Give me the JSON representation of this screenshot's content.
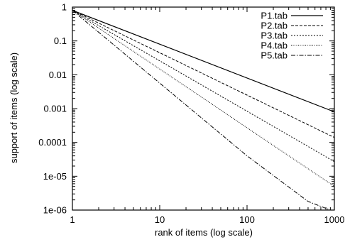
{
  "chart_data": {
    "type": "line",
    "xlabel": "rank of items (log scale)",
    "ylabel": "support of items (log scale)",
    "xscale": "log",
    "yscale": "log",
    "xlim": [
      1,
      1000
    ],
    "ylim": [
      1e-06,
      1
    ],
    "x_ticks": [
      {
        "value": 1,
        "label": "1"
      },
      {
        "value": 10,
        "label": "10"
      },
      {
        "value": 100,
        "label": "100"
      },
      {
        "value": 1000,
        "label": "1000"
      }
    ],
    "y_ticks": [
      {
        "value": 1,
        "label": "1"
      },
      {
        "value": 0.1,
        "label": "0.1"
      },
      {
        "value": 0.01,
        "label": "0.01"
      },
      {
        "value": 0.001,
        "label": "0.001"
      },
      {
        "value": 0.0001,
        "label": "0.0001"
      },
      {
        "value": 1e-05,
        "label": "1e-05"
      },
      {
        "value": 1e-06,
        "label": "1e-06"
      }
    ],
    "grid": false,
    "legend_position": "top-right",
    "series": [
      {
        "name": "P1.tab",
        "dash": "solid",
        "x": [
          1,
          1000
        ],
        "y": [
          0.8,
          0.0008
        ]
      },
      {
        "name": "P2.tab",
        "dash": "dashed",
        "x": [
          1,
          1000
        ],
        "y": [
          0.8,
          0.00014
        ]
      },
      {
        "name": "P3.tab",
        "dash": "dotted",
        "x": [
          1,
          1000
        ],
        "y": [
          0.8,
          2.7e-05
        ]
      },
      {
        "name": "P4.tab",
        "dash": "fine-dotted",
        "x": [
          1,
          1000
        ],
        "y": [
          0.8,
          5e-06
        ]
      },
      {
        "name": "P5.tab",
        "dash": "dash-dot",
        "x": [
          1,
          1,
          100,
          500,
          1000
        ],
        "y": [
          0.8,
          0.8,
          4e-05,
          1.8e-06,
          9e-07
        ]
      }
    ]
  }
}
